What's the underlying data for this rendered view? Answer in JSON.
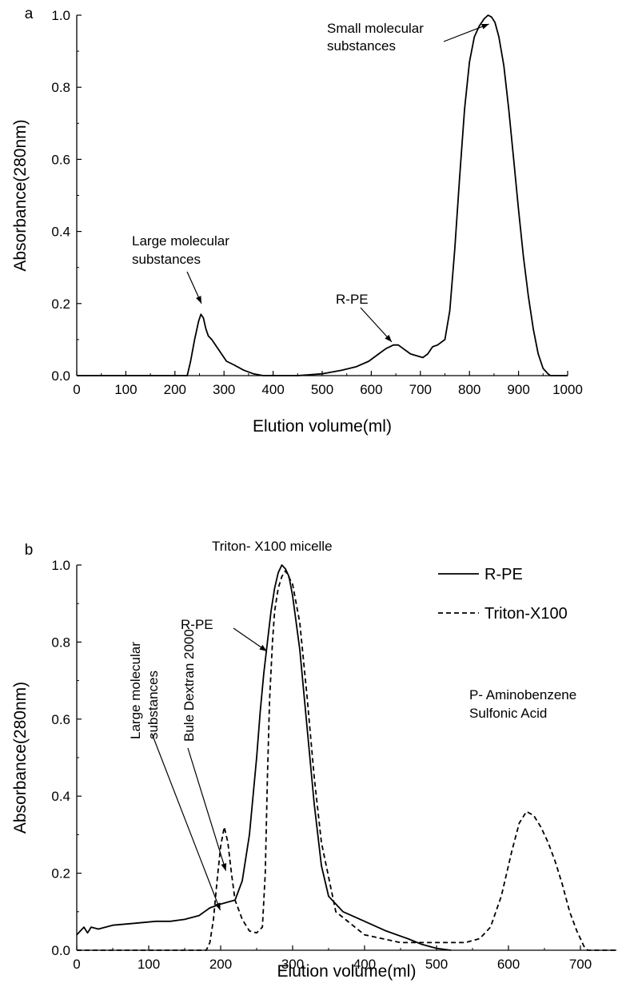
{
  "chart_data": [
    {
      "panel": "a",
      "type": "line",
      "xlabel": "Elution volume(ml)",
      "ylabel": "Absorbance(280nm)",
      "xlim": [
        0,
        1000
      ],
      "ylim": [
        0,
        1.0
      ],
      "xticks": [
        "0",
        "100",
        "200",
        "300",
        "400",
        "500",
        "600",
        "700",
        "800",
        "900",
        "1000"
      ],
      "yticks": [
        "0.0",
        "0.2",
        "0.4",
        "0.6",
        "0.8",
        "1.0"
      ],
      "grid": false,
      "series": [
        {
          "style": "solid",
          "color": "#000000",
          "x": [
            0,
            225,
            232,
            240,
            248,
            253,
            258,
            263,
            268,
            275,
            285,
            295,
            305,
            320,
            340,
            360,
            380,
            400,
            450,
            500,
            540,
            570,
            595,
            615,
            630,
            645,
            655,
            665,
            680,
            693,
            705,
            715,
            725,
            735,
            750,
            760,
            770,
            780,
            790,
            800,
            810,
            820,
            830,
            838,
            845,
            852,
            860,
            870,
            880,
            890,
            900,
            910,
            920,
            930,
            940,
            950,
            960,
            965,
            980,
            1000
          ],
          "y": [
            0.0,
            0.0,
            0.04,
            0.1,
            0.15,
            0.17,
            0.16,
            0.13,
            0.11,
            0.1,
            0.08,
            0.06,
            0.04,
            0.03,
            0.015,
            0.005,
            0.0,
            0.0,
            0.0,
            0.005,
            0.015,
            0.025,
            0.04,
            0.06,
            0.075,
            0.085,
            0.085,
            0.075,
            0.06,
            0.055,
            0.05,
            0.06,
            0.08,
            0.085,
            0.1,
            0.18,
            0.35,
            0.55,
            0.74,
            0.87,
            0.94,
            0.97,
            0.99,
            1.0,
            0.995,
            0.98,
            0.94,
            0.86,
            0.74,
            0.6,
            0.46,
            0.33,
            0.22,
            0.13,
            0.06,
            0.02,
            0.005,
            0.0,
            0.0,
            0.0
          ]
        }
      ],
      "annotations": [
        {
          "lines": [
            "Small molecular",
            "substances"
          ],
          "target_x": 843,
          "target_y": 0.98
        },
        {
          "lines": [
            "Large molecular",
            "substances"
          ],
          "target_x": 254,
          "target_y": 0.2
        },
        {
          "lines": [
            "R-PE"
          ],
          "target_x": 645,
          "target_y": 0.1
        }
      ]
    },
    {
      "panel": "b",
      "type": "line",
      "xlabel": "Elution volume(ml)",
      "ylabel": "Absorbance(280nm)",
      "xlim": [
        0,
        750
      ],
      "ylim": [
        0,
        1.0
      ],
      "xticks": [
        "0",
        "100",
        "200",
        "300",
        "400",
        "500",
        "600",
        "700"
      ],
      "yticks": [
        "0.0",
        "0.2",
        "0.4",
        "0.6",
        "0.8",
        "1.0"
      ],
      "grid": false,
      "legend": "top-right",
      "series": [
        {
          "name": "R-PE",
          "style": "solid",
          "color": "#000000",
          "x": [
            0,
            5,
            10,
            15,
            20,
            30,
            50,
            80,
            110,
            130,
            150,
            170,
            185,
            200,
            210,
            220,
            230,
            240,
            245,
            250,
            255,
            260,
            265,
            270,
            275,
            280,
            285,
            290,
            295,
            300,
            310,
            320,
            330,
            340,
            350,
            370,
            400,
            430,
            460,
            480,
            500,
            520
          ],
          "y": [
            0.04,
            0.05,
            0.06,
            0.045,
            0.06,
            0.055,
            0.065,
            0.07,
            0.075,
            0.075,
            0.08,
            0.09,
            0.11,
            0.12,
            0.125,
            0.13,
            0.18,
            0.3,
            0.4,
            0.5,
            0.62,
            0.72,
            0.8,
            0.88,
            0.94,
            0.98,
            1.0,
            0.99,
            0.97,
            0.92,
            0.78,
            0.58,
            0.38,
            0.22,
            0.14,
            0.1,
            0.075,
            0.05,
            0.03,
            0.015,
            0.005,
            0.0
          ]
        },
        {
          "name": "Triton-X100",
          "style": "dashed",
          "color": "#000000",
          "x": [
            0,
            50,
            100,
            150,
            180,
            185,
            190,
            195,
            200,
            205,
            210,
            215,
            220,
            230,
            240,
            250,
            258,
            262,
            265,
            268,
            272,
            275,
            280,
            285,
            290,
            300,
            310,
            320,
            330,
            340,
            360,
            400,
            450,
            500,
            540,
            560,
            575,
            590,
            605,
            615,
            625,
            635,
            645,
            655,
            665,
            675,
            685,
            695,
            705,
            710,
            750
          ],
          "y": [
            0.0,
            0.0,
            0.0,
            0.0,
            0.0,
            0.02,
            0.08,
            0.18,
            0.27,
            0.32,
            0.28,
            0.2,
            0.13,
            0.08,
            0.05,
            0.045,
            0.06,
            0.2,
            0.45,
            0.65,
            0.8,
            0.88,
            0.94,
            0.97,
            0.985,
            0.95,
            0.85,
            0.66,
            0.45,
            0.28,
            0.1,
            0.04,
            0.02,
            0.02,
            0.02,
            0.03,
            0.06,
            0.14,
            0.26,
            0.33,
            0.36,
            0.35,
            0.32,
            0.28,
            0.23,
            0.17,
            0.1,
            0.05,
            0.01,
            0.0,
            0.0
          ]
        }
      ],
      "annotations": [
        {
          "lines": [
            "Triton- X100 micelle"
          ]
        },
        {
          "lines": [
            "R-PE"
          ],
          "target_x": 262,
          "target_y": 0.77
        },
        {
          "lines": [
            "P- Aminobenzene",
            "Sulfonic Acid"
          ]
        },
        {
          "lines": [
            "Bule Dextran 2000"
          ],
          "rotated": true,
          "target_x": 205,
          "target_y": 0.2
        },
        {
          "lines": [
            "Large molecular",
            "substances"
          ],
          "rotated": true,
          "target_x": 195,
          "target_y": 0.11
        }
      ]
    }
  ]
}
